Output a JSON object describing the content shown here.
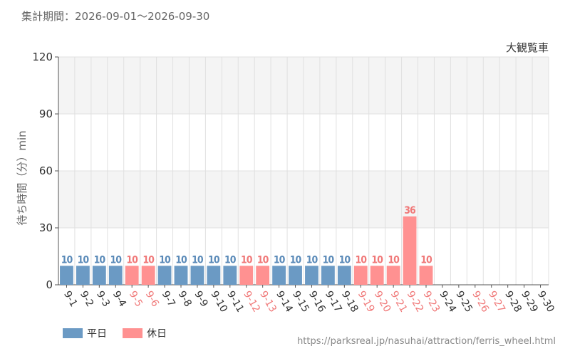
{
  "header": {
    "period_text": "集計期間：2026-09-01〜2026-09-30"
  },
  "credit": {
    "url": "https://parksreal.jp/nasuhai/attraction/ferris_wheel.html"
  },
  "colors": {
    "weekday": "#6b9ac4",
    "weekday_label": "#5a8ab8",
    "holiday": "#ff9191",
    "holiday_label": "#f07878",
    "grid": "#e0e0e0",
    "band": "#f4f4f4",
    "axis_text": "#333333"
  },
  "chart_data": {
    "type": "bar",
    "title": "大観覧車",
    "ylabel": "待ち時間（分）min",
    "ylim": [
      0,
      120
    ],
    "yticks": [
      0,
      30,
      60,
      90,
      120
    ],
    "grid": true,
    "categories": [
      "9-1",
      "9-2",
      "9-3",
      "9-4",
      "9-5",
      "9-6",
      "9-7",
      "9-8",
      "9-9",
      "9-10",
      "9-11",
      "9-12",
      "9-13",
      "9-14",
      "9-15",
      "9-16",
      "9-17",
      "9-18",
      "9-19",
      "9-20",
      "9-21",
      "9-22",
      "9-23",
      "9-24",
      "9-25",
      "9-26",
      "9-27",
      "9-28",
      "9-29",
      "9-30"
    ],
    "values": [
      10,
      10,
      10,
      10,
      10,
      10,
      10,
      10,
      10,
      10,
      10,
      10,
      10,
      10,
      10,
      10,
      10,
      10,
      10,
      10,
      10,
      36,
      10,
      null,
      null,
      null,
      null,
      null,
      null,
      null
    ],
    "day_type": [
      "weekday",
      "weekday",
      "weekday",
      "weekday",
      "holiday",
      "holiday",
      "weekday",
      "weekday",
      "weekday",
      "weekday",
      "weekday",
      "holiday",
      "holiday",
      "weekday",
      "weekday",
      "weekday",
      "weekday",
      "weekday",
      "holiday",
      "holiday",
      "holiday",
      "holiday",
      "holiday",
      "weekday",
      "weekday",
      "holiday",
      "holiday",
      "weekday",
      "weekday",
      "weekday"
    ],
    "legend": [
      {
        "key": "weekday",
        "label": "平日"
      },
      {
        "key": "holiday",
        "label": "休日"
      }
    ],
    "legend_position": "bottom-left"
  }
}
